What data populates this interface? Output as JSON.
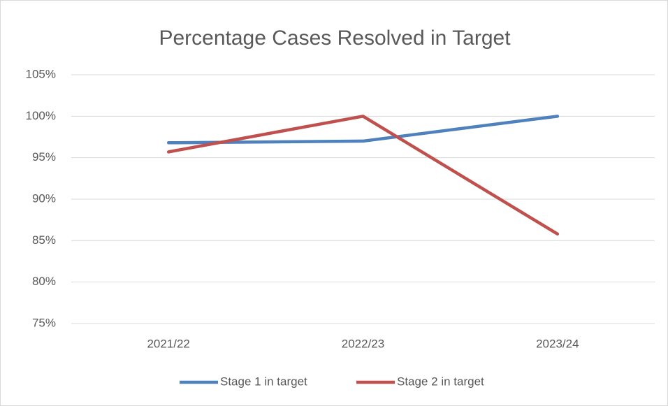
{
  "chart_data": {
    "type": "line",
    "title": "Percentage Cases Resolved in Target",
    "categories": [
      "2021/22",
      "2022/23",
      "2023/24"
    ],
    "series": [
      {
        "name": "Stage 1 in target",
        "color": "#4f81bd",
        "values": [
          96.8,
          97.0,
          100
        ]
      },
      {
        "name": "Stage 2 in target",
        "color": "#c0504d",
        "values": [
          95.7,
          100,
          85.8
        ]
      }
    ],
    "ylim": [
      75,
      105
    ],
    "yticks": [
      {
        "value": 75,
        "label": "75%"
      },
      {
        "value": 80,
        "label": "80%"
      },
      {
        "value": 85,
        "label": "85%"
      },
      {
        "value": 90,
        "label": "90%"
      },
      {
        "value": 95,
        "label": "95%"
      },
      {
        "value": 100,
        "label": "100%"
      },
      {
        "value": 105,
        "label": "105%"
      }
    ],
    "grid": true,
    "legend": "bottom"
  }
}
